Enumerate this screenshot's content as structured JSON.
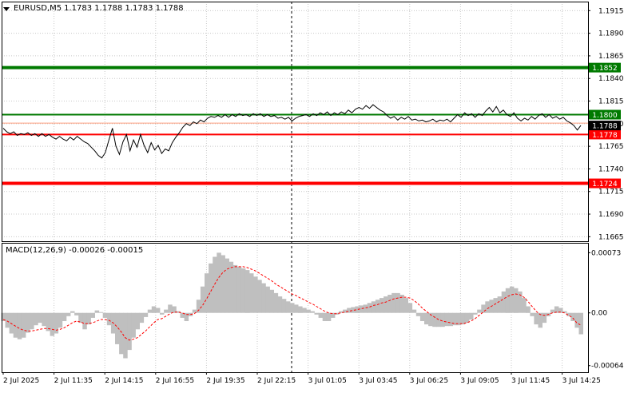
{
  "window": {
    "symbol_label": "EURUSD,M5",
    "ohlc": "1.1783 1.1788 1.1783 1.1788"
  },
  "colors": {
    "background": "#ffffff",
    "grid": "#c8c8c8",
    "price_line": "#000000",
    "support_resistance_green": "#007a00",
    "support_resistance_red": "#ff0000",
    "bid_line": "#ff9f7f",
    "macd_histogram": "#bfbfbf",
    "macd_signal": "#ff0000"
  },
  "price_axis": {
    "ticks": [
      "1.1915",
      "1.1890",
      "1.1865",
      "1.1840",
      "1.1815",
      "1.1790",
      "1.1765",
      "1.1740",
      "1.1715",
      "1.1690",
      "1.1665"
    ]
  },
  "time_axis": {
    "ticks": [
      "2 Jul 2025",
      "2 Jul 11:35",
      "2 Jul 14:15",
      "2 Jul 16:55",
      "2 Jul 19:35",
      "2 Jul 22:15",
      "3 Jul 01:05",
      "3 Jul 03:45",
      "3 Jul 06:25",
      "3 Jul 09:05",
      "3 Jul 11:45",
      "3 Jul 14:25"
    ]
  },
  "levels": [
    {
      "label": "1.1852",
      "value": 1.1852,
      "color": "green"
    },
    {
      "label": "1.1800",
      "value": 1.18,
      "color": "green"
    },
    {
      "label": "1.1778",
      "value": 1.1778,
      "color": "red"
    },
    {
      "label": "1.1724",
      "value": 1.1724,
      "color": "red"
    }
  ],
  "current_price": {
    "label": "1.1788",
    "value": 1.1788
  },
  "macd": {
    "label": "MACD(12,26,9) -0.00026 -0.00015",
    "ticks": [
      "0.00073",
      "0.00",
      "-0.00064"
    ]
  },
  "chart_data": {
    "type": "line",
    "title": "EURUSD,M5  1.1783 1.1788 1.1783 1.1788",
    "xlabel": "",
    "ylabel": "",
    "ylim": [
      1.166,
      1.1925
    ],
    "grid": true,
    "x_ticks": [
      "2 Jul 2025",
      "2 Jul 11:35",
      "2 Jul 14:15",
      "2 Jul 16:55",
      "2 Jul 19:35",
      "2 Jul 22:15",
      "3 Jul 01:05",
      "3 Jul 03:45",
      "3 Jul 06:25",
      "3 Jul 09:05",
      "3 Jul 11:45",
      "3 Jul 14:25"
    ],
    "price": [
      1.1785,
      1.1781,
      1.1779,
      1.1781,
      1.1777,
      1.1779,
      1.1778,
      1.178,
      1.1777,
      1.1779,
      1.1776,
      1.1779,
      1.1776,
      1.1778,
      1.1775,
      1.1773,
      1.1776,
      1.1773,
      1.1771,
      1.1775,
      1.1772,
      1.1776,
      1.1773,
      1.177,
      1.1768,
      1.1764,
      1.176,
      1.1755,
      1.1752,
      1.1758,
      1.1772,
      1.1785,
      1.1765,
      1.1756,
      1.177,
      1.1778,
      1.176,
      1.1772,
      1.1764,
      1.1778,
      1.1766,
      1.1758,
      1.1769,
      1.1761,
      1.1766,
      1.1757,
      1.1762,
      1.176,
      1.1769,
      1.1775,
      1.178,
      1.1786,
      1.179,
      1.1788,
      1.1792,
      1.179,
      1.1794,
      1.1792,
      1.1796,
      1.1798,
      1.1797,
      1.1799,
      1.1797,
      1.18,
      1.1797,
      1.18,
      1.1798,
      1.1801,
      1.1799,
      1.18,
      1.1798,
      1.1801,
      1.1799,
      1.1801,
      1.1798,
      1.18,
      1.1798,
      1.1799,
      1.1796,
      1.1797,
      1.1795,
      1.1797,
      1.1793,
      1.1796,
      1.1798,
      1.1799,
      1.18,
      1.1798,
      1.1801,
      1.1799,
      1.1802,
      1.18,
      1.1803,
      1.1799,
      1.1802,
      1.18,
      1.1803,
      1.1801,
      1.1805,
      1.1802,
      1.1806,
      1.1808,
      1.1806,
      1.181,
      1.1807,
      1.1811,
      1.1808,
      1.1805,
      1.1803,
      1.1799,
      1.1796,
      1.1798,
      1.1794,
      1.1797,
      1.1795,
      1.1798,
      1.1794,
      1.1795,
      1.1793,
      1.1794,
      1.1792,
      1.1793,
      1.1795,
      1.1792,
      1.1794,
      1.1793,
      1.1795,
      1.1792,
      1.1796,
      1.18,
      1.1797,
      1.1802,
      1.1799,
      1.1801,
      1.1797,
      1.1801,
      1.1799,
      1.1804,
      1.1808,
      1.1803,
      1.1809,
      1.1802,
      1.1805,
      1.18,
      1.1798,
      1.1802,
      1.1796,
      1.1793,
      1.1796,
      1.1794,
      1.1798,
      1.1795,
      1.1799,
      1.1801,
      1.1797,
      1.18,
      1.1796,
      1.1798,
      1.1795,
      1.1797,
      1.1793,
      1.1791,
      1.1788,
      1.1783,
      1.1788
    ],
    "macd_histogram": [
      -0.0001,
      -0.00018,
      -0.00025,
      -0.0003,
      -0.00032,
      -0.0003,
      -0.00024,
      -0.0002,
      -0.00015,
      -0.00012,
      -0.00016,
      -0.00022,
      -0.00028,
      -0.00025,
      -0.00018,
      -0.0001,
      -4e-05,
      2e-05,
      -3e-05,
      -0.00012,
      -0.0002,
      -0.00014,
      -6e-05,
      3e-05,
      1e-05,
      -6e-05,
      -0.00015,
      -0.00025,
      -0.00038,
      -0.0005,
      -0.00055,
      -0.00045,
      -0.0003,
      -0.0002,
      -0.00012,
      -5e-05,
      4e-05,
      8e-05,
      6e-05,
      -2e-05,
      4e-05,
      0.0001,
      8e-05,
      2e-05,
      -6e-05,
      -0.0001,
      -4e-05,
      4e-05,
      0.00016,
      0.00032,
      0.00048,
      0.0006,
      0.00068,
      0.00073,
      0.0007,
      0.00066,
      0.00062,
      0.00058,
      0.00056,
      0.00054,
      0.00052,
      0.00048,
      0.00044,
      0.0004,
      0.00036,
      0.00032,
      0.00028,
      0.00024,
      0.0002,
      0.00017,
      0.00014,
      0.00012,
      0.0001,
      8e-05,
      6e-05,
      4e-05,
      2e-05,
      -2e-05,
      -6e-05,
      -0.0001,
      -0.0001,
      -6e-05,
      -2e-05,
      2e-05,
      4e-05,
      6e-05,
      7e-05,
      8e-05,
      9e-05,
      0.0001,
      0.00012,
      0.00014,
      0.00016,
      0.00018,
      0.0002,
      0.00022,
      0.00024,
      0.00024,
      0.00022,
      0.00018,
      0.00012,
      4e-05,
      -4e-05,
      -0.0001,
      -0.00014,
      -0.00016,
      -0.00017,
      -0.00017,
      -0.00017,
      -0.00016,
      -0.00016,
      -0.00015,
      -0.00015,
      -0.00014,
      -0.00012,
      -8e-05,
      -2e-05,
      4e-05,
      0.0001,
      0.00014,
      0.00016,
      0.00018,
      0.0002,
      0.00026,
      0.0003,
      0.00032,
      0.0003,
      0.00026,
      0.00018,
      8e-05,
      -4e-05,
      -0.00014,
      -0.00018,
      -0.00012,
      -4e-05,
      4e-05,
      8e-05,
      6e-05,
      2e-05,
      -4e-05,
      -0.0001,
      -0.00018,
      -0.00026
    ],
    "macd_signal": [
      -8e-05,
      -0.0001,
      -0.00013,
      -0.00016,
      -0.00019,
      -0.00021,
      -0.00022,
      -0.00022,
      -0.00021,
      -0.0002,
      -0.00019,
      -0.00019,
      -0.0002,
      -0.00021,
      -0.0002,
      -0.00018,
      -0.00015,
      -0.00012,
      -0.0001,
      -0.00011,
      -0.00013,
      -0.00013,
      -0.00012,
      -0.0001,
      -8e-05,
      -8e-05,
      -9e-05,
      -0.00012,
      -0.00017,
      -0.00023,
      -0.0003,
      -0.00033,
      -0.00032,
      -0.0003,
      -0.00026,
      -0.00022,
      -0.00017,
      -0.00012,
      -8e-05,
      -7e-05,
      -4e-05,
      -1e-05,
      1e-05,
      1e-05,
      0.0,
      -2e-05,
      -2e-05,
      -1e-05,
      3e-05,
      9e-05,
      0.00017,
      0.00026,
      0.00035,
      0.00043,
      0.00049,
      0.00053,
      0.00055,
      0.00056,
      0.00056,
      0.00056,
      0.00055,
      0.00053,
      0.00051,
      0.00048,
      0.00045,
      0.00042,
      0.00039,
      0.00035,
      0.00032,
      0.00029,
      0.00026,
      0.00023,
      0.00021,
      0.00018,
      0.00016,
      0.00013,
      0.00011,
      8e-05,
      5e-05,
      2e-05,
      0.0,
      -1e-05,
      -1e-05,
      0.0,
      1e-05,
      2e-05,
      3e-05,
      4e-05,
      5e-05,
      6e-05,
      7e-05,
      9e-05,
      0.0001,
      0.00012,
      0.00013,
      0.00015,
      0.00017,
      0.00018,
      0.00019,
      0.00019,
      0.00018,
      0.00015,
      0.00011,
      6e-05,
      2e-05,
      -2e-05,
      -5e-05,
      -8e-05,
      -0.0001,
      -0.00011,
      -0.00012,
      -0.00013,
      -0.00013,
      -0.00013,
      -0.00012,
      -0.0001,
      -7e-05,
      -3e-05,
      1e-05,
      5e-05,
      8e-05,
      0.00011,
      0.00014,
      0.00017,
      0.0002,
      0.00022,
      0.00023,
      0.00022,
      0.00019,
      0.00014,
      8e-05,
      2e-05,
      -2e-05,
      -3e-05,
      -2e-05,
      0.0,
      1e-05,
      1e-05,
      0.0,
      -3e-05,
      -6e-05,
      -0.00012,
      -0.00015
    ]
  }
}
